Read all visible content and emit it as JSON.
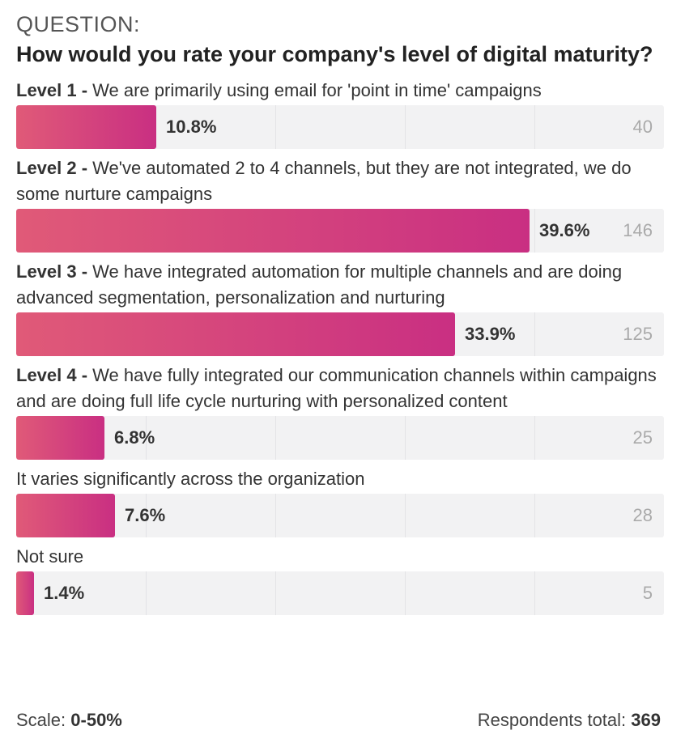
{
  "question": {
    "label": "QUESTION:",
    "title": "How would you rate your company's level of digital maturity?"
  },
  "chart_data": {
    "type": "bar",
    "orientation": "horizontal",
    "scale_max": 50,
    "grid": true,
    "categories": [
      {
        "prefix": "Level 1 - ",
        "text": "We are primarily using email for 'point in time' campaigns",
        "percent": 10.8,
        "percent_label": "10.8%",
        "count": 40
      },
      {
        "prefix": "Level 2 - ",
        "text": "We've automated 2 to 4 channels, but they are not integrated, we do some nurture campaigns",
        "percent": 39.6,
        "percent_label": "39.6%",
        "count": 146
      },
      {
        "prefix": "Level 3 - ",
        "text": "We have integrated automation for multiple channels and are doing advanced segmentation, personalization and nurturing",
        "percent": 33.9,
        "percent_label": "33.9%",
        "count": 125
      },
      {
        "prefix": "Level 4 - ",
        "text": "We have fully integrated our communication channels within campaigns and are doing full life cycle nurturing with personalized content",
        "percent": 6.8,
        "percent_label": "6.8%",
        "count": 25
      },
      {
        "prefix": "",
        "text": "It varies significantly across the organization",
        "percent": 7.6,
        "percent_label": "7.6%",
        "count": 28
      },
      {
        "prefix": "",
        "text": "Not sure",
        "percent": 1.4,
        "percent_label": "1.4%",
        "count": 5
      }
    ]
  },
  "footer": {
    "scale_label": "Scale: ",
    "scale_value": "0-50%",
    "respondents_label": "Respondents total: ",
    "respondents_value": "369"
  },
  "colors": {
    "bar_start": "#e05a78",
    "bar_end": "#c92f82",
    "track": "#f2f2f3"
  }
}
